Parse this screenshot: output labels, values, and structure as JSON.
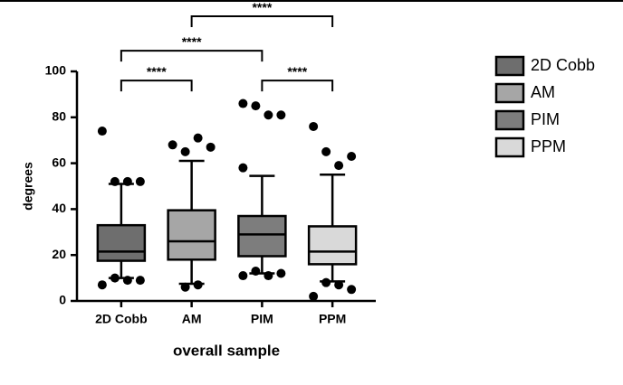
{
  "chart_data": {
    "type": "box",
    "xlabel": "overall sample",
    "ylabel": "degrees",
    "categories": [
      "2D Cobb",
      "AM",
      "PIM",
      "PPM"
    ],
    "ylim": [
      0,
      100
    ],
    "yticks": [
      0,
      20,
      40,
      60,
      80,
      100
    ],
    "series": [
      {
        "name": "2D Cobb",
        "color": "#6e6e6e",
        "low": 10,
        "q1": 17.5,
        "median": 21.5,
        "q3": 33,
        "high": 51,
        "outliers": [
          74,
          52,
          52,
          52,
          7,
          10,
          9,
          9
        ]
      },
      {
        "name": "AM",
        "color": "#a6a6a6",
        "low": 7.5,
        "q1": 18,
        "median": 26,
        "q3": 39.5,
        "high": 61,
        "outliers": [
          68,
          65,
          71,
          67,
          6,
          7
        ]
      },
      {
        "name": "PIM",
        "color": "#7d7d7d",
        "low": 12,
        "q1": 19.5,
        "median": 29,
        "q3": 37,
        "high": 54.5,
        "outliers": [
          86,
          85,
          81,
          81,
          58,
          11,
          13,
          11,
          12
        ]
      },
      {
        "name": "PPM",
        "color": "#d9d9d9",
        "low": 8.5,
        "q1": 16,
        "median": 21.5,
        "q3": 32.5,
        "high": 55,
        "outliers": [
          76,
          65,
          59,
          63,
          2,
          8,
          7,
          5
        ]
      }
    ],
    "annotations": [
      {
        "text": "****",
        "from": "2D Cobb",
        "to": "AM",
        "y": 96
      },
      {
        "text": "****",
        "from": "PIM",
        "to": "PPM",
        "y": 96
      },
      {
        "text": "****",
        "from": "2D Cobb",
        "to": "PIM",
        "y": 109
      },
      {
        "text": "****",
        "from": "AM",
        "to": "PPM",
        "y": 124
      }
    ]
  }
}
